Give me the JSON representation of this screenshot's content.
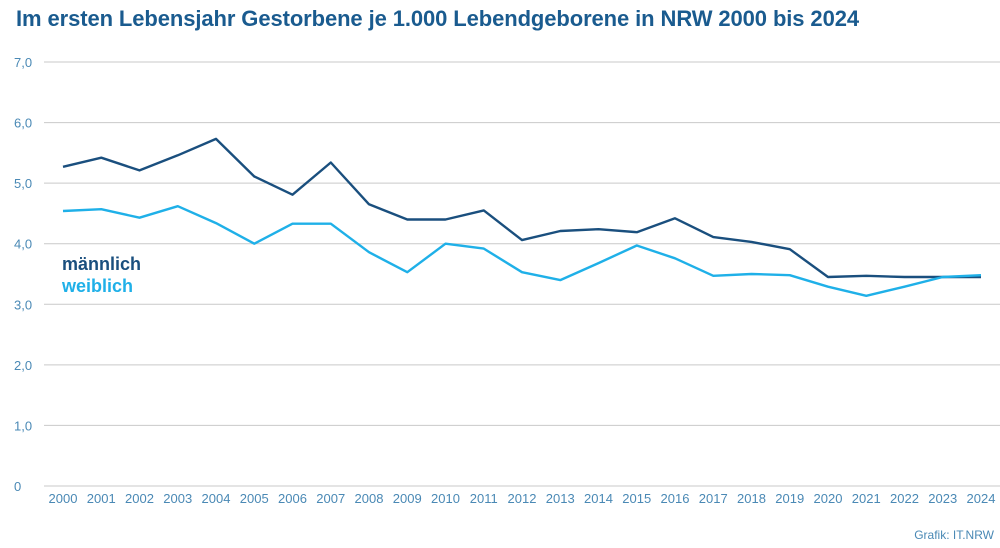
{
  "title": "Im ersten Lebensjahr Gestorbene je 1.000 Lebendgeborene in NRW 2000 bis 2024",
  "source": "Grafik: IT.NRW",
  "colors": {
    "maennlich": "#1a4f7e",
    "weiblich": "#1fb0e8",
    "grid": "#c9c9c9",
    "tick": "#4a89b5",
    "title": "#1a5b8f"
  },
  "chart_data": {
    "type": "line",
    "title": "Im ersten Lebensjahr Gestorbene je 1.000 Lebendgeborene in NRW 2000 bis 2024",
    "xlabel": "",
    "ylabel": "",
    "ylim": [
      0,
      7
    ],
    "y_ticks": [
      "0",
      "1,0",
      "2,0",
      "3,0",
      "4,0",
      "5,0",
      "6,0",
      "7,0"
    ],
    "grid": true,
    "legend_position": "left-inline",
    "categories": [
      "2000",
      "2001",
      "2002",
      "2003",
      "2004",
      "2005",
      "2006",
      "2007",
      "2008",
      "2009",
      "2010",
      "2011",
      "2012",
      "2013",
      "2014",
      "2015",
      "2016",
      "2017",
      "2018",
      "2019",
      "2020",
      "2021",
      "2022",
      "2023",
      "2024"
    ],
    "series": [
      {
        "name": "männlich",
        "color": "#1a4f7e",
        "values": [
          5.27,
          5.42,
          5.21,
          5.46,
          5.73,
          5.11,
          4.81,
          5.34,
          4.65,
          4.4,
          4.4,
          4.55,
          4.06,
          4.21,
          4.24,
          4.19,
          4.42,
          4.11,
          4.03,
          3.91,
          3.45,
          3.47,
          3.45,
          3.45,
          3.45
        ]
      },
      {
        "name": "weiblich",
        "color": "#1fb0e8",
        "values": [
          4.54,
          4.57,
          4.43,
          4.62,
          4.34,
          4.0,
          4.33,
          4.33,
          3.86,
          3.53,
          4.0,
          3.92,
          3.53,
          3.4,
          3.68,
          3.97,
          3.76,
          3.47,
          3.5,
          3.48,
          3.29,
          3.14,
          3.29,
          3.45,
          3.48
        ]
      }
    ]
  }
}
